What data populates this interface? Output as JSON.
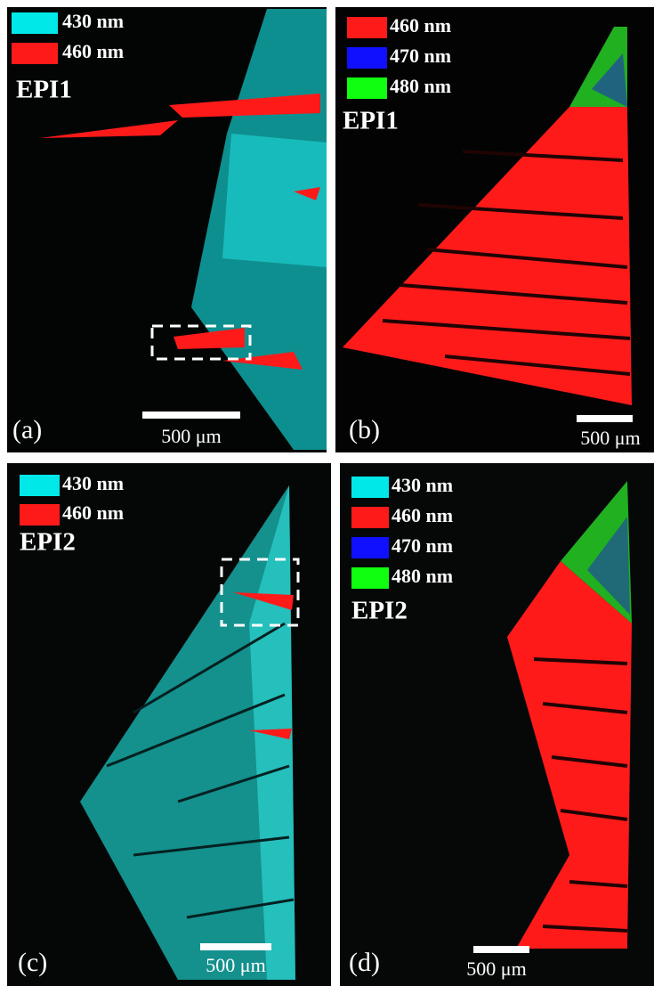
{
  "panels": [
    {
      "letter": "(a)",
      "sample": "EPI1",
      "scale_bar": "500 μm",
      "legend": [
        {
          "label": "430 nm",
          "color": "#00e8e8"
        },
        {
          "label": "460 nm",
          "color": "#ff1a1a"
        }
      ]
    },
    {
      "letter": "(b)",
      "sample": "EPI1",
      "scale_bar": "500 μm",
      "legend": [
        {
          "label": "460 nm",
          "color": "#ff1a1a"
        },
        {
          "label": "470 nm",
          "color": "#1010ff"
        },
        {
          "label": "480 nm",
          "color": "#10ff10"
        }
      ]
    },
    {
      "letter": "(c)",
      "sample": "EPI2",
      "scale_bar": "500 μm",
      "legend": [
        {
          "label": "430 nm",
          "color": "#00e8e8"
        },
        {
          "label": "460 nm",
          "color": "#ff1a1a"
        }
      ]
    },
    {
      "letter": "(d)",
      "sample": "EPI2",
      "scale_bar": "500 μm",
      "legend": [
        {
          "label": "430 nm",
          "color": "#00e8e8"
        },
        {
          "label": "460 nm",
          "color": "#ff1a1a"
        },
        {
          "label": "470 nm",
          "color": "#1010ff"
        },
        {
          "label": "480 nm",
          "color": "#10ff10"
        }
      ]
    }
  ]
}
